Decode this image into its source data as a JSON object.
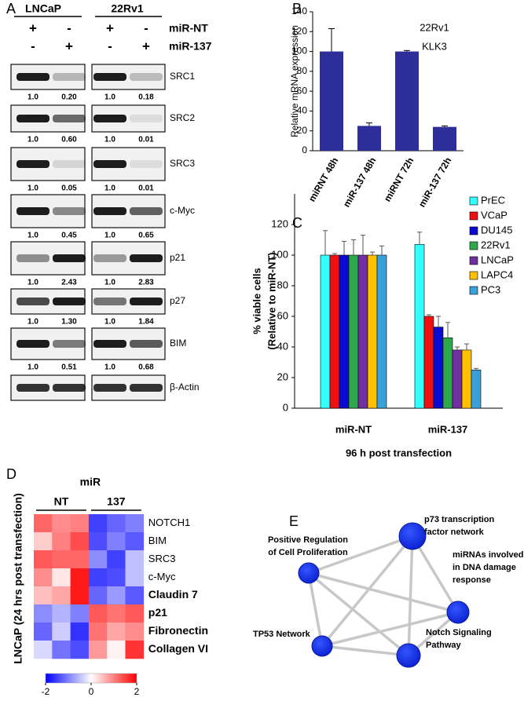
{
  "panel_labels": [
    "A",
    "B",
    "C",
    "D",
    "E"
  ],
  "blot": {
    "cell_lines": [
      "LNCaP",
      "22Rv1"
    ],
    "conditions": [
      {
        "name": "miR-NT",
        "signs": [
          "+",
          "-",
          "+",
          "-"
        ]
      },
      {
        "name": "miR-137",
        "signs": [
          "-",
          "+",
          "-",
          "+"
        ]
      }
    ],
    "proteins": [
      {
        "name": "SRC1",
        "quant": [
          "1.0",
          "0.20",
          "1.0",
          "0.18"
        ]
      },
      {
        "name": "SRC2",
        "quant": [
          "1.0",
          "0.60",
          "1.0",
          "0.01"
        ]
      },
      {
        "name": "SRC3",
        "quant": [
          "1.0",
          "0.05",
          "1.0",
          "0.01"
        ]
      },
      {
        "name": "c-Myc",
        "quant": [
          "1.0",
          "0.45",
          "1.0",
          "0.65"
        ]
      },
      {
        "name": "p21",
        "quant": [
          "1.0",
          "2.43",
          "1.0",
          "2.83"
        ]
      },
      {
        "name": "p27",
        "quant": [
          "1.0",
          "1.30",
          "1.0",
          "1.84"
        ]
      },
      {
        "name": "BIM",
        "quant": [
          "1.0",
          "0.51",
          "1.0",
          "0.68"
        ]
      },
      {
        "name": "β-Actin"
      }
    ]
  },
  "chart_data": [
    {
      "type": "bar",
      "annotations": [
        "22Rv1",
        "KLK3"
      ],
      "y_label": "Relative mRNA expression",
      "categories": [
        "miRNT 48h",
        "miR-137 48h",
        "miRNT 72h",
        "miR-137 72h"
      ],
      "values": [
        100,
        25,
        100,
        24
      ],
      "errors": [
        23,
        3,
        1,
        1
      ],
      "color": "#2e2e9a",
      "ylim": [
        0,
        140
      ],
      "yticks": [
        0,
        20,
        40,
        60,
        80,
        100,
        120,
        140
      ]
    },
    {
      "type": "grouped_bar",
      "y_label": [
        "% viable  cells",
        "(Relative to miR-NT)"
      ],
      "x_label": "96 h post transfection",
      "categories": [
        "miR-NT",
        "miR-137"
      ],
      "series": [
        {
          "name": "PrEC",
          "color": "#33ffff",
          "values": [
            100,
            107
          ],
          "errors": [
            16,
            8
          ]
        },
        {
          "name": "VCaP",
          "color": "#ee1111",
          "values": [
            100,
            60
          ],
          "errors": [
            1,
            1
          ]
        },
        {
          "name": "DU145",
          "color": "#0a0ad0",
          "values": [
            100,
            53
          ],
          "errors": [
            9,
            7
          ]
        },
        {
          "name": "22Rv1",
          "color": "#2ea84a",
          "values": [
            100,
            46
          ],
          "errors": [
            10,
            10
          ]
        },
        {
          "name": "LNCaP",
          "color": "#7030a0",
          "values": [
            100,
            38
          ],
          "errors": [
            13,
            2
          ]
        },
        {
          "name": "LAPC4",
          "color": "#ffc000",
          "values": [
            100,
            38
          ],
          "errors": [
            2,
            4
          ]
        },
        {
          "name": "PC3",
          "color": "#3aa0d8",
          "values": [
            100,
            25
          ],
          "errors": [
            6,
            1
          ]
        }
      ],
      "ylim": [
        0,
        140
      ],
      "yticks": [
        0,
        20,
        40,
        60,
        80,
        100,
        120
      ],
      "legend": "upper right"
    },
    {
      "type": "heatmap",
      "title": "miR",
      "column_groups": [
        "NT",
        "137"
      ],
      "y_label": "LNCaP (24 hrs post transfection)",
      "rows": [
        "NOTCH1",
        "BIM",
        "SRC3",
        "c-Myc",
        "Claudin 7",
        "p21",
        "Fibronectin",
        "Collagen VI"
      ],
      "values": [
        [
          1.2,
          0.9,
          1.0,
          -1.5,
          -1.2,
          -1.0
        ],
        [
          0.4,
          1.0,
          1.4,
          -1.4,
          -1.0,
          -1.3
        ],
        [
          1.3,
          1.2,
          1.2,
          -0.9,
          -1.5,
          -0.5
        ],
        [
          0.9,
          0.2,
          1.8,
          -1.5,
          -1.4,
          -0.5
        ],
        [
          0.5,
          0.7,
          1.8,
          -1.2,
          -0.8,
          -1.3
        ],
        [
          -0.9,
          -0.6,
          -1.0,
          1.3,
          1.1,
          1.3
        ],
        [
          -1.2,
          -0.4,
          -1.6,
          1.1,
          0.7,
          0.9
        ],
        [
          -0.3,
          -1.1,
          -1.4,
          0.8,
          0.1,
          1.6
        ]
      ],
      "clim": [
        -2,
        2
      ],
      "colorbar_ticks": [
        -2,
        0,
        2
      ]
    }
  ],
  "network": {
    "nodes": [
      {
        "lines": [
          "p73 transcription",
          "factor network"
        ]
      },
      {
        "lines": [
          "Positive Regulation",
          "of Cell Proliferation"
        ]
      },
      {
        "lines": [
          "miRNAs involved",
          "in DNA damage",
          "response"
        ]
      },
      {
        "lines": [
          "TP53 Network"
        ]
      },
      {
        "lines": [
          "Notch Signaling",
          "Pathway"
        ]
      }
    ]
  }
}
